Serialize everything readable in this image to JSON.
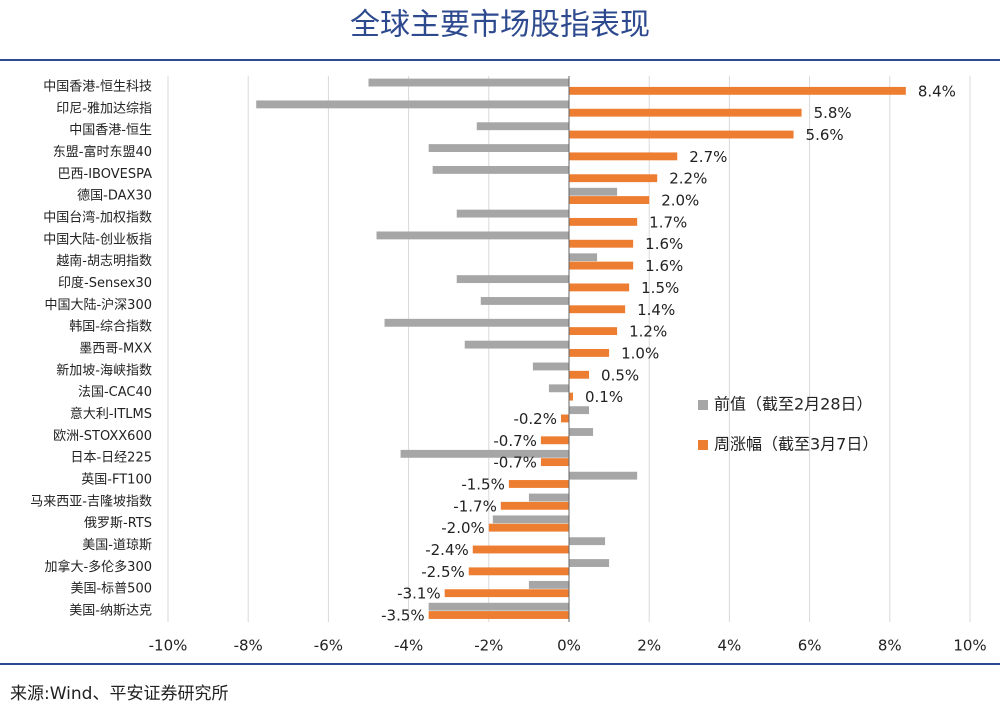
{
  "chart_data": {
    "type": "hbar",
    "title": "全球主要市场股指表现",
    "categories": [
      "中国香港-恒生科技",
      "印尼-雅加达综指",
      "中国香港-恒生",
      "东盟-富时东盟40",
      "巴西-IBOVESPA",
      "德国-DAX30",
      "中国台湾-加权指数",
      "中国大陆-创业板指",
      "越南-胡志明指数",
      "印度-Sensex30",
      "中国大陆-沪深300",
      "韩国-综合指数",
      "墨西哥-MXX",
      "新加坡-海峡指数",
      "法国-CAC40",
      "意大利-ITLMS",
      "欧洲-STOXX600",
      "日本-日经225",
      "英国-FT100",
      "马来西亚-吉隆坡指数",
      "俄罗斯-RTS",
      "美国-道琼斯",
      "加拿大-多伦多300",
      "美国-标普500",
      "美国-纳斯达克"
    ],
    "series": [
      {
        "name": "前值（截至2月28日）",
        "color": "#a6a6a6",
        "values": [
          -5.0,
          -7.8,
          -2.3,
          -3.5,
          -3.4,
          1.2,
          -2.8,
          -4.8,
          0.7,
          -2.8,
          -2.2,
          -4.6,
          -2.6,
          -0.9,
          -0.5,
          0.5,
          0.6,
          -4.2,
          1.7,
          -1.0,
          -1.9,
          0.9,
          1.0,
          -1.0,
          -3.5
        ]
      },
      {
        "name": "周涨幅（截至3月7日）",
        "color": "#ed7d31",
        "values": [
          8.4,
          5.8,
          5.6,
          2.7,
          2.2,
          2.0,
          1.7,
          1.6,
          1.6,
          1.5,
          1.4,
          1.2,
          1.0,
          0.5,
          0.1,
          -0.2,
          -0.7,
          -0.7,
          -1.5,
          -1.7,
          -2.0,
          -2.4,
          -2.5,
          -3.1,
          -3.5
        ],
        "value_labels": [
          "8.4%",
          "5.8%",
          "5.6%",
          "2.7%",
          "2.2%",
          "2.0%",
          "1.7%",
          "1.6%",
          "1.6%",
          "1.5%",
          "1.4%",
          "1.2%",
          "1.0%",
          "0.5%",
          "0.1%",
          "-0.2%",
          "-0.7%",
          "-0.7%",
          "-1.5%",
          "-1.7%",
          "-2.0%",
          "-2.4%",
          "-2.5%",
          "-3.1%",
          "-3.5%"
        ]
      }
    ],
    "xlim": [
      -10,
      10
    ],
    "xticks": [
      {
        "value": -10,
        "label": "-10%"
      },
      {
        "value": -8,
        "label": "-8%"
      },
      {
        "value": -6,
        "label": "-6%"
      },
      {
        "value": -4,
        "label": "-4%"
      },
      {
        "value": -2,
        "label": "-2%"
      },
      {
        "value": 0,
        "label": "0%"
      },
      {
        "value": 2,
        "label": "2%"
      },
      {
        "value": 4,
        "label": "4%"
      },
      {
        "value": 6,
        "label": "6%"
      },
      {
        "value": 8,
        "label": "8%"
      },
      {
        "value": 10,
        "label": "10%"
      }
    ],
    "grid": true,
    "source": "来源:Wind、平安证券研究所"
  }
}
